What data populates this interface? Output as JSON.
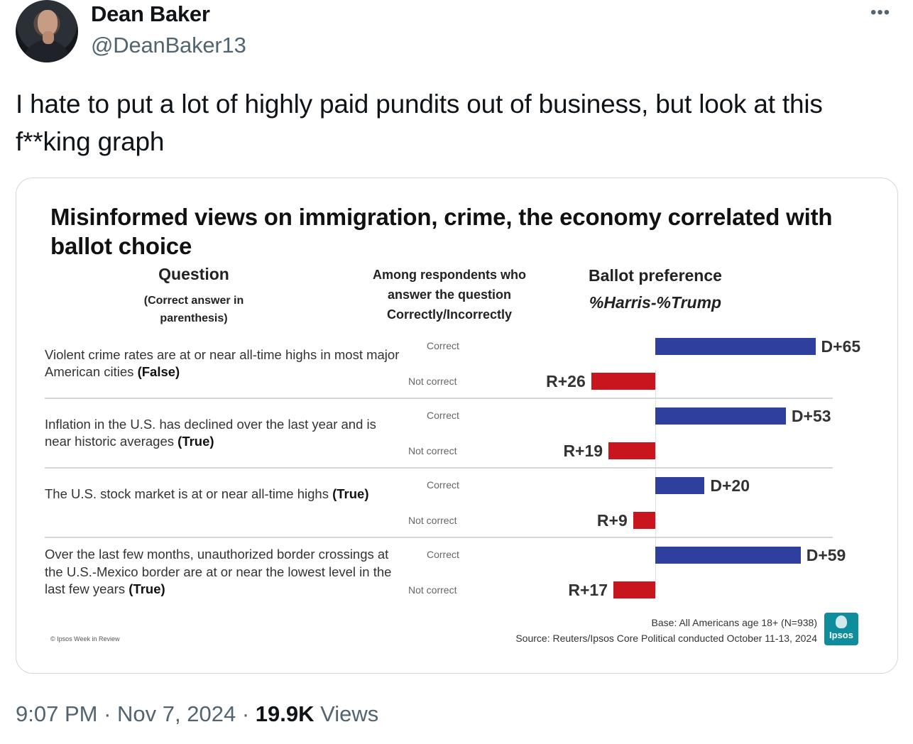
{
  "author": {
    "name": "Dean Baker",
    "handle": "@DeanBaker13"
  },
  "more_label": "•••",
  "tweet": {
    "text": "I hate to put a lot of highly paid pundits out of business, but look at this f**king graph"
  },
  "meta": {
    "time": "9:07 PM",
    "sep": "·",
    "date": "Nov 7, 2024",
    "views_count": "19.9K",
    "views_label": "Views"
  },
  "chart_data": {
    "type": "bar",
    "orientation": "horizontal-diverging",
    "title": "Misinformed views on immigration, crime, the economy correlated with ballot choice",
    "headers": {
      "question": "Question",
      "question_sub": "(Correct answer in parenthesis)",
      "among": "Among respondents who answer the question Correctly/Incorrectly",
      "ballot": "Ballot preference",
      "metric": "%Harris-%Trump"
    },
    "row_labels": {
      "correct": "Correct",
      "not_correct": "Not correct"
    },
    "questions": [
      {
        "text": "Violent crime rates are at or near all-time highs in most major American cities",
        "answer": "(False)",
        "correct": {
          "label": "D+65",
          "value": 65
        },
        "not_correct": {
          "label": "R+26",
          "value": -26
        }
      },
      {
        "text": "Inflation in the U.S. has declined over the last year and is near historic averages",
        "answer": "(True)",
        "correct": {
          "label": "D+53",
          "value": 53
        },
        "not_correct": {
          "label": "R+19",
          "value": -19
        }
      },
      {
        "text": "The U.S. stock market is at or near all-time highs",
        "answer": "(True)",
        "correct": {
          "label": "D+20",
          "value": 20
        },
        "not_correct": {
          "label": "R+9",
          "value": -9
        }
      },
      {
        "text": "Over the last few months, unauthorized border crossings at the U.S.-Mexico border are at or near the lowest level in the last few years",
        "answer": "(True)",
        "correct": {
          "label": "D+59",
          "value": 59
        },
        "not_correct": {
          "label": "R+17",
          "value": -17
        }
      }
    ],
    "colors": {
      "harris": "#2e3f9e",
      "trump": "#c9151d"
    },
    "base": "Base: All Americans age 18+ (N=938)",
    "source": "Source: Reuters/Ipsos Core Political conducted October 11-13, 2024",
    "copyright": "© Ipsos Week in Review",
    "logo_text": "Ipsos"
  }
}
